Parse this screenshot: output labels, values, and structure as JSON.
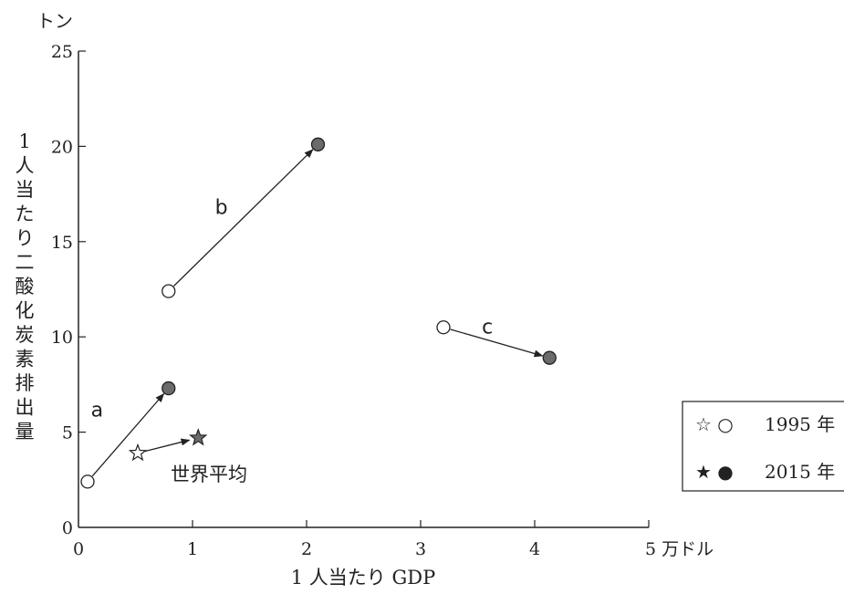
{
  "chart_data": {
    "type": "scatter",
    "title": "",
    "xlabel": "1 人当たり GDP",
    "x_unit": "5 万ドル",
    "ylabel": "1人当たり二酸化炭素排出量",
    "y_unit": "トン",
    "xlim": [
      0,
      5
    ],
    "ylim": [
      0,
      25
    ],
    "x_ticks": [
      "0",
      "1",
      "2",
      "3",
      "4",
      "5"
    ],
    "y_ticks": [
      "0",
      "5",
      "10",
      "15",
      "20",
      "25"
    ],
    "grid": false,
    "legend_position": "right",
    "legend": [
      {
        "symbols": "☆ ○",
        "label": "1995 年"
      },
      {
        "symbols": "★ ●",
        "label": "2015 年"
      }
    ],
    "series": [
      {
        "name": "a",
        "x1995": 0.08,
        "y1995": 2.4,
        "x2015": 0.79,
        "y2015": 7.3
      },
      {
        "name": "b",
        "x1995": 0.79,
        "y1995": 12.4,
        "x2015": 2.1,
        "y2015": 20.1
      },
      {
        "name": "c",
        "x1995": 3.2,
        "y1995": 10.5,
        "x2015": 4.13,
        "y2015": 8.9
      }
    ],
    "world_average": {
      "name": "世界平均",
      "x1995": 0.52,
      "y1995": 3.9,
      "x2015": 1.05,
      "y2015": 4.7
    }
  },
  "colors": {
    "axis": "#222222",
    "filled_marker": "#6b6b6b",
    "open_marker": "#ffffff"
  }
}
